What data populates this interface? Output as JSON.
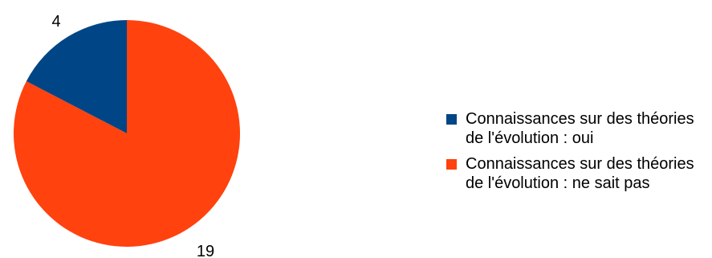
{
  "chart_data": {
    "type": "pie",
    "title": "",
    "slices": [
      {
        "label": "Connaissances sur des théories de l'évolution : oui",
        "value": 4,
        "color": "#004586"
      },
      {
        "label": "Connaissances sur des théories de l'évolution : ne sait pas",
        "value": 19,
        "color": "#FF420E"
      }
    ],
    "legend_placement": "right",
    "start_angle": "12 o'clock",
    "direction": "counterclockwise"
  }
}
